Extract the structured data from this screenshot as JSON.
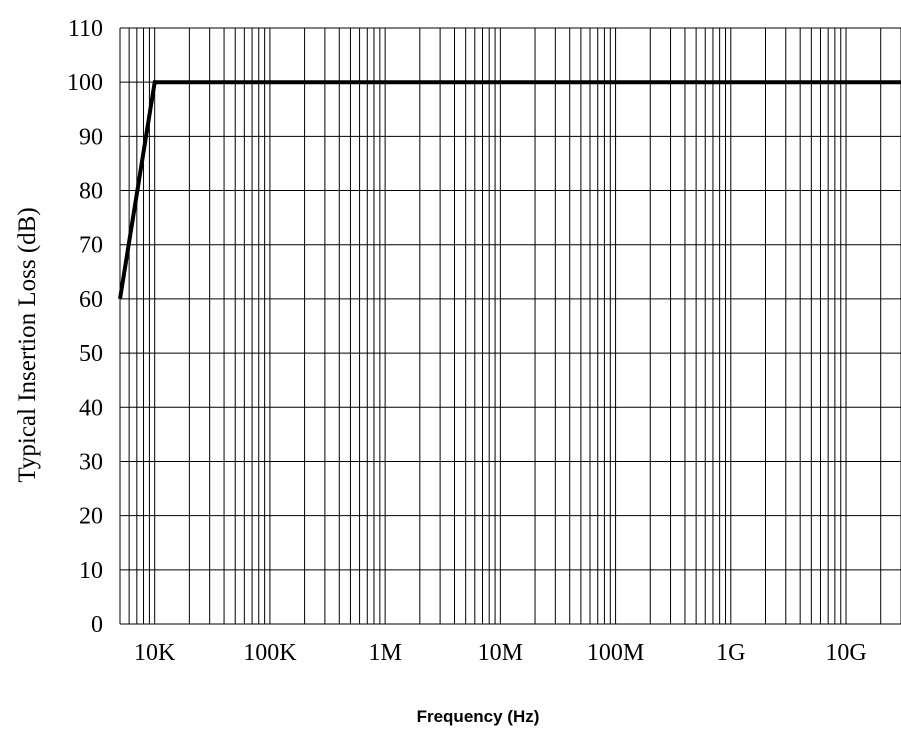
{
  "chart_data": {
    "type": "line",
    "title": "",
    "xlabel": "Frequency (Hz)",
    "ylabel": "Typical Insertion Loss (dB)",
    "x_scale": "log",
    "xlim": [
      5000,
      30000000000
    ],
    "ylim": [
      0,
      110
    ],
    "grid": true,
    "x_ticks": [
      {
        "value": 10000,
        "label": "10K"
      },
      {
        "value": 100000,
        "label": "100K"
      },
      {
        "value": 1000000,
        "label": "1M"
      },
      {
        "value": 10000000,
        "label": "10M"
      },
      {
        "value": 100000000,
        "label": "100M"
      },
      {
        "value": 1000000000,
        "label": "1G"
      },
      {
        "value": 10000000000,
        "label": "10G"
      }
    ],
    "y_ticks": [
      {
        "value": 0,
        "label": "0"
      },
      {
        "value": 10,
        "label": "10"
      },
      {
        "value": 20,
        "label": "20"
      },
      {
        "value": 30,
        "label": "30"
      },
      {
        "value": 40,
        "label": "40"
      },
      {
        "value": 50,
        "label": "50"
      },
      {
        "value": 60,
        "label": "60"
      },
      {
        "value": 70,
        "label": "70"
      },
      {
        "value": 80,
        "label": "80"
      },
      {
        "value": 90,
        "label": "90"
      },
      {
        "value": 100,
        "label": "100"
      },
      {
        "value": 110,
        "label": "110"
      }
    ],
    "series": [
      {
        "x": [
          5000,
          10000,
          30000000000
        ],
        "y": [
          60,
          100,
          100
        ],
        "color": "#000000"
      }
    ]
  }
}
